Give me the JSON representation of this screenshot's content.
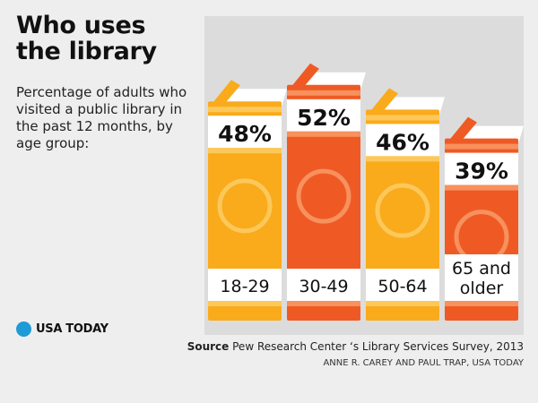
{
  "header": {
    "title": "Who uses the library",
    "subtitle": "Percentage of adults who visited a public library in the past 12 months, by age group:"
  },
  "logo": {
    "text": "USA TODAY",
    "icon": "blue-dot-icon",
    "color": "#1e9bd7"
  },
  "footer": {
    "source_label": "Source",
    "source_text": "Pew Research Center ‘s Library Services Survey, 2013",
    "credit": "ANNE R. CAREY AND PAUL TRAP, USA TODAY"
  },
  "colors": {
    "yellow": "#f9ab1c",
    "yellow_light": "#fcc85a",
    "orange": "#ef5a24",
    "orange_light": "#f7915e",
    "pages": "#ffffff",
    "panel": "#dcdcdc"
  },
  "chart_data": {
    "type": "bar",
    "categories": [
      "18-29",
      "30-49",
      "50-64",
      "65 and older"
    ],
    "category_lines": [
      [
        "18-29"
      ],
      [
        "30-49"
      ],
      [
        "50-64"
      ],
      [
        "65 and",
        "older"
      ]
    ],
    "values": [
      48,
      52,
      46,
      39
    ],
    "value_labels": [
      "48%",
      "52%",
      "46%",
      "39%"
    ],
    "bar_colors": [
      "yellow",
      "orange",
      "yellow",
      "orange"
    ],
    "title": "Who uses the library",
    "unit": "%"
  }
}
